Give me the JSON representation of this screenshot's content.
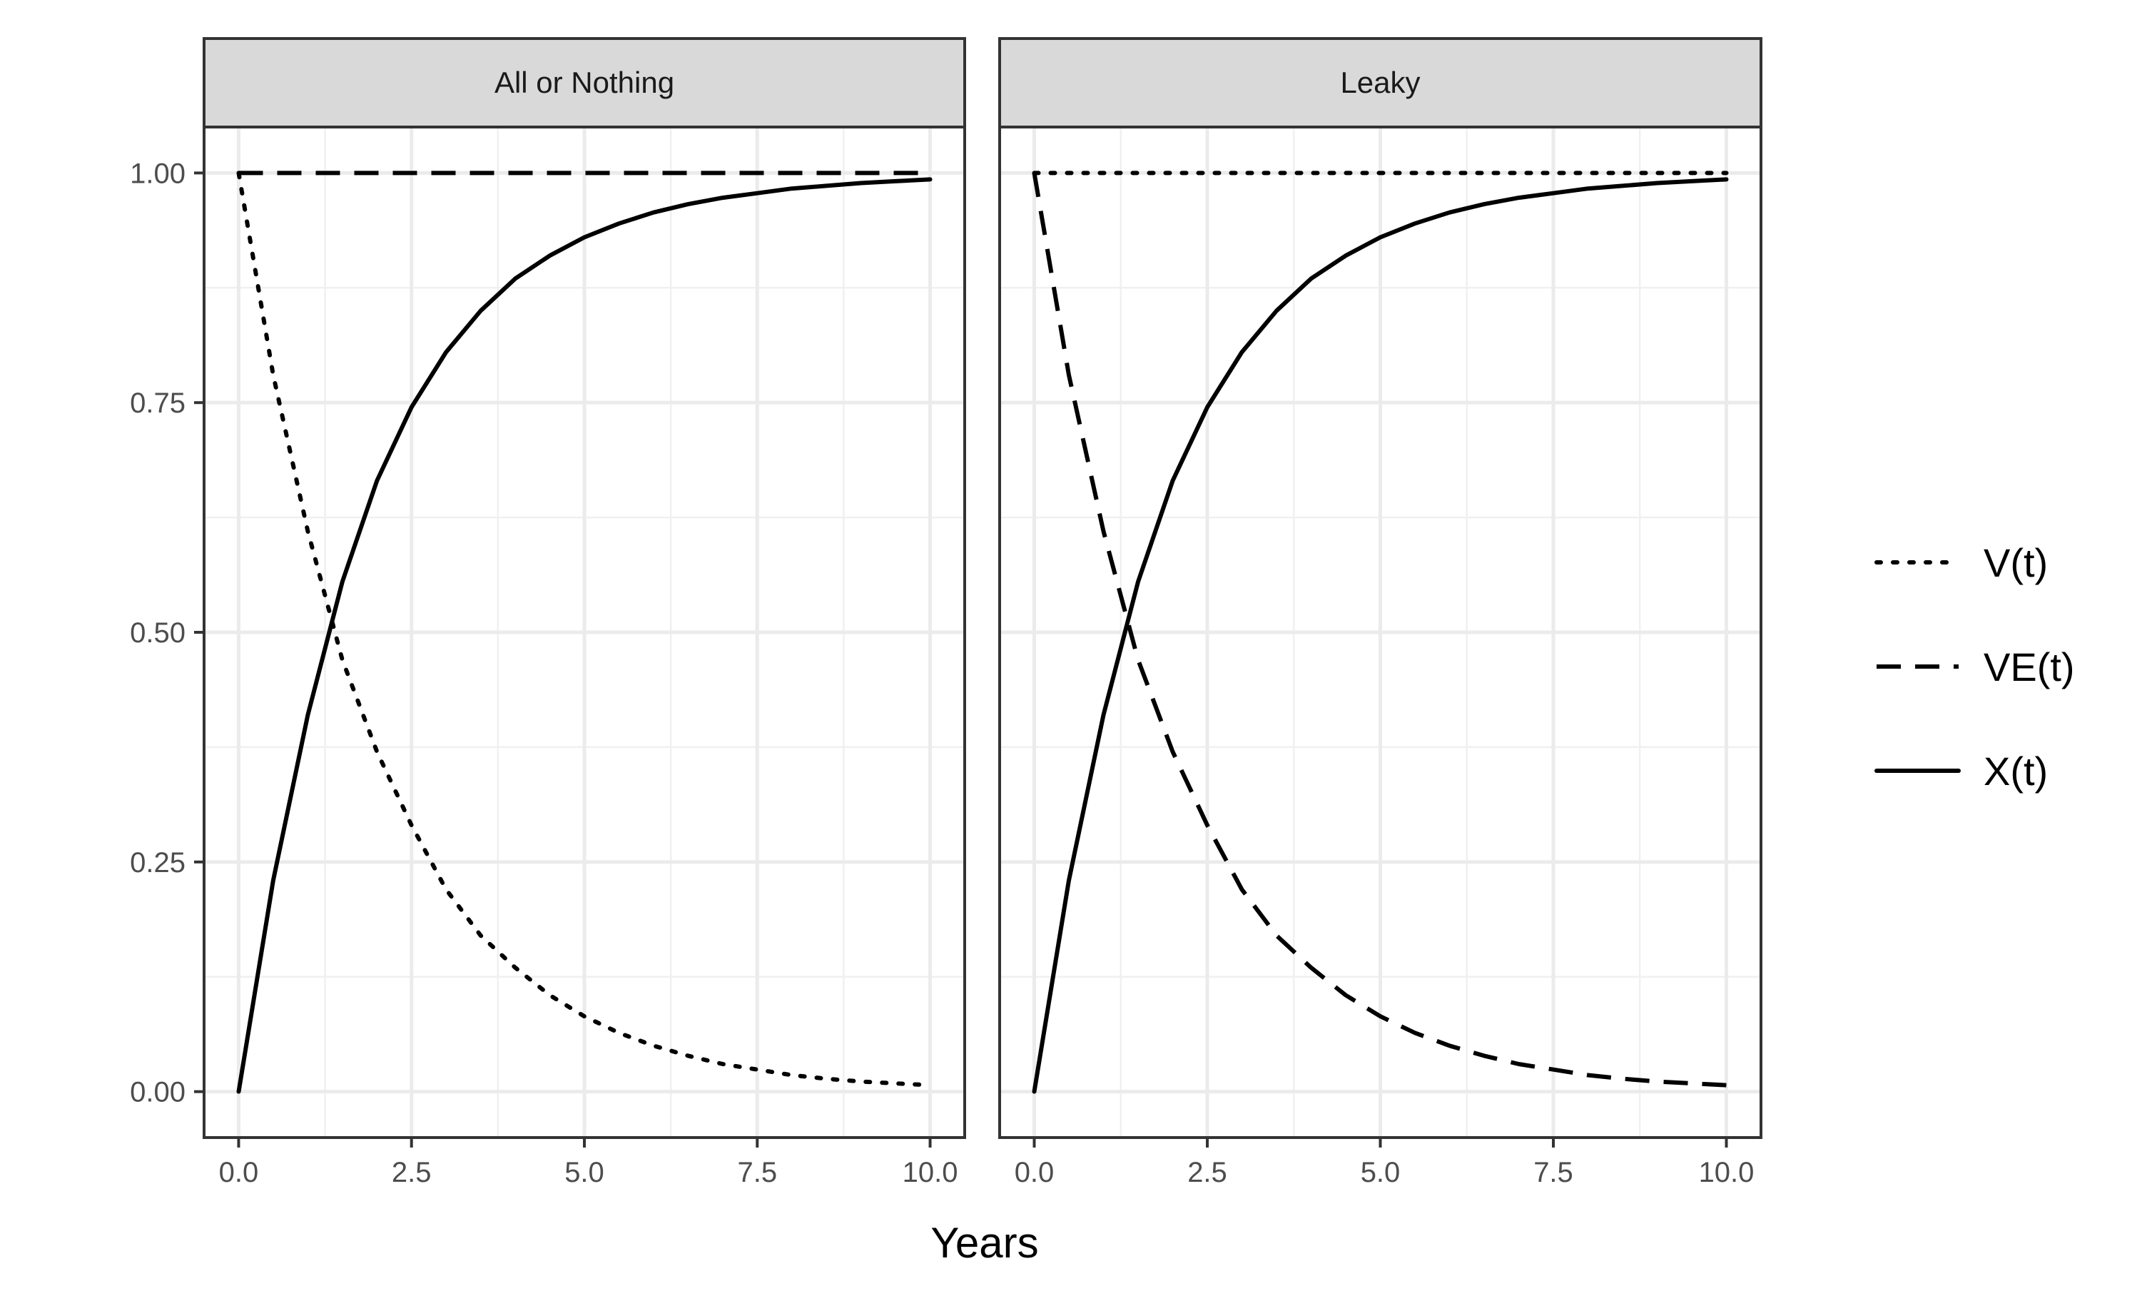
{
  "chart_data": {
    "type": "line",
    "xlabel": "Years",
    "ylabel": "",
    "xlim": [
      -0.5,
      10.5
    ],
    "ylim": [
      -0.05,
      1.05
    ],
    "x_ticks": [
      "0.0",
      "2.5",
      "5.0",
      "7.5",
      "10.0"
    ],
    "x_tick_values": [
      0,
      2.5,
      5,
      7.5,
      10
    ],
    "y_ticks": [
      "0.00",
      "0.25",
      "0.50",
      "0.75",
      "1.00"
    ],
    "y_tick_values": [
      0,
      0.25,
      0.5,
      0.75,
      1
    ],
    "grid": true,
    "legend_position": "right",
    "x": [
      0,
      0.5,
      1,
      1.5,
      2,
      2.5,
      3,
      3.5,
      4,
      4.5,
      5,
      5.5,
      6,
      6.5,
      7,
      7.5,
      8,
      8.5,
      9,
      9.5,
      10
    ],
    "legend": [
      {
        "label": "V(t)",
        "style": "dotted"
      },
      {
        "label": "VE(t)",
        "style": "dashed"
      },
      {
        "label": "X(t)",
        "style": "solid"
      }
    ],
    "panels": [
      {
        "title": "All or Nothing",
        "series": [
          {
            "name": "V(t)",
            "style": "dotted",
            "values": [
              1.0,
              0.78,
              0.61,
              0.47,
              0.37,
              0.29,
              0.22,
              0.17,
              0.135,
              0.105,
              0.082,
              0.064,
              0.05,
              0.039,
              0.03,
              0.024,
              0.018,
              0.014,
              0.011,
              0.009,
              0.007
            ]
          },
          {
            "name": "VE(t)",
            "style": "dashed",
            "values": [
              1,
              1,
              1,
              1,
              1,
              1,
              1,
              1,
              1,
              1,
              1,
              1,
              1,
              1,
              1,
              1,
              1,
              1,
              1,
              1,
              1
            ]
          },
          {
            "name": "X(t)",
            "style": "solid",
            "values": [
              0.0,
              0.23,
              0.41,
              0.555,
              0.665,
              0.745,
              0.805,
              0.85,
              0.885,
              0.91,
              0.93,
              0.945,
              0.957,
              0.966,
              0.973,
              0.978,
              0.983,
              0.986,
              0.989,
              0.991,
              0.993
            ]
          }
        ]
      },
      {
        "title": "Leaky",
        "series": [
          {
            "name": "V(t)",
            "style": "dotted",
            "values": [
              1,
              1,
              1,
              1,
              1,
              1,
              1,
              1,
              1,
              1,
              1,
              1,
              1,
              1,
              1,
              1,
              1,
              1,
              1,
              1,
              1
            ]
          },
          {
            "name": "VE(t)",
            "style": "dashed",
            "values": [
              1.0,
              0.78,
              0.61,
              0.47,
              0.37,
              0.29,
              0.22,
              0.17,
              0.135,
              0.105,
              0.082,
              0.064,
              0.05,
              0.039,
              0.03,
              0.024,
              0.018,
              0.014,
              0.011,
              0.009,
              0.007
            ]
          },
          {
            "name": "X(t)",
            "style": "solid",
            "values": [
              0.0,
              0.23,
              0.41,
              0.555,
              0.665,
              0.745,
              0.805,
              0.85,
              0.885,
              0.91,
              0.93,
              0.945,
              0.957,
              0.966,
              0.973,
              0.978,
              0.983,
              0.986,
              0.989,
              0.991,
              0.993
            ]
          }
        ]
      }
    ]
  }
}
